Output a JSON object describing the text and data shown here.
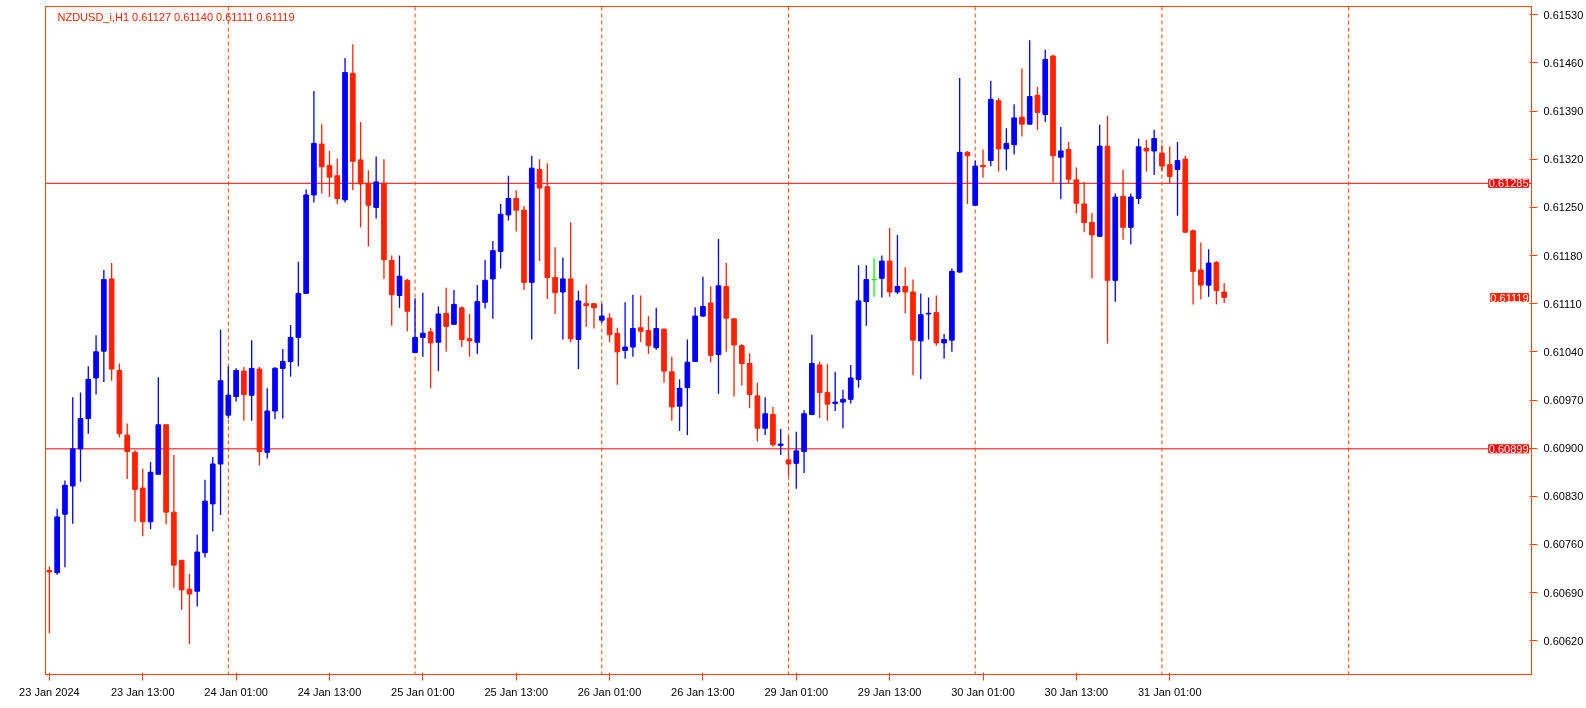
{
  "chart_data": {
    "type": "candlestick",
    "title": "NZDUSD_i,H1  0.61127 0.61140 0.61111 0.61119",
    "categories": [
      "23 Jan 2024",
      null,
      null,
      null,
      null,
      null,
      null,
      null,
      null,
      null,
      null,
      null,
      "23 Jan 13:00",
      null,
      null,
      null,
      null,
      null,
      null,
      null,
      null,
      null,
      null,
      null,
      "24 Jan 01:00",
      null,
      null,
      null,
      null,
      null,
      null,
      null,
      null,
      null,
      null,
      null,
      "24 Jan 13:00",
      null,
      null,
      null,
      null,
      null,
      null,
      null,
      null,
      null,
      null,
      null,
      "25 Jan 01:00",
      null,
      null,
      null,
      null,
      null,
      null,
      null,
      null,
      null,
      null,
      null,
      "25 Jan 13:00",
      null,
      null,
      null,
      null,
      null,
      null,
      null,
      null,
      null,
      null,
      null,
      "26 Jan 01:00",
      null,
      null,
      null,
      null,
      null,
      null,
      null,
      null,
      null,
      null,
      null,
      "26 Jan 13:00",
      null,
      null,
      null,
      null,
      null,
      null,
      null,
      null,
      null,
      null,
      null,
      "29 Jan 01:00",
      null,
      null,
      null,
      null,
      null,
      null,
      null,
      null,
      null,
      null,
      null,
      "29 Jan 13:00",
      null,
      null,
      null,
      null,
      null,
      null,
      null,
      null,
      null,
      null,
      null,
      "30 Jan 01:00",
      null,
      null,
      null,
      null,
      null,
      null,
      null,
      null,
      null,
      null,
      null,
      "30 Jan 13:00",
      null,
      null,
      null,
      null,
      null,
      null,
      null,
      null,
      null,
      null,
      null,
      "31 Jan 01:00",
      null,
      null,
      null,
      null,
      null,
      null,
      null,
      null,
      null,
      null,
      null,
      null,
      null,
      null,
      null,
      null,
      null,
      null,
      null,
      null,
      null,
      null,
      null,
      null,
      null,
      null,
      null,
      null,
      null,
      null,
      null,
      null,
      null,
      null,
      null,
      null,
      null,
      null,
      null,
      null,
      null,
      null,
      null,
      null,
      null,
      null
    ],
    "ohlc": [
      [
        0.60722,
        0.60728,
        0.60631,
        0.6072
      ],
      [
        0.60719,
        0.60812,
        0.60716,
        0.608
      ],
      [
        0.60804,
        0.60853,
        0.60727,
        0.60846
      ],
      [
        0.60845,
        0.60974,
        0.6079,
        0.60899
      ],
      [
        0.60899,
        0.60981,
        0.60851,
        0.60943
      ],
      [
        0.60943,
        0.61019,
        0.60921,
        0.61
      ],
      [
        0.61002,
        0.61064,
        0.60978,
        0.6104
      ],
      [
        0.61041,
        0.61159,
        0.60996,
        0.61145
      ],
      [
        0.61146,
        0.61169,
        0.60998,
        0.61015
      ],
      [
        0.61013,
        0.61023,
        0.60916,
        0.60921
      ],
      [
        0.60919,
        0.60936,
        0.60855,
        0.60895
      ],
      [
        0.60894,
        0.60897,
        0.60793,
        0.6084
      ],
      [
        0.60842,
        0.6087,
        0.60772,
        0.60793
      ],
      [
        0.60793,
        0.6088,
        0.60782,
        0.60865
      ],
      [
        0.60862,
        0.61003,
        0.60862,
        0.60934
      ],
      [
        0.60934,
        0.60934,
        0.60789,
        0.60807
      ],
      [
        0.60807,
        0.6089,
        0.60697,
        0.6073
      ],
      [
        0.60737,
        0.60737,
        0.60665,
        0.60694
      ],
      [
        0.60695,
        0.60717,
        0.60615,
        0.60688
      ],
      [
        0.60692,
        0.60774,
        0.6067,
        0.60749
      ],
      [
        0.60748,
        0.60854,
        0.60741,
        0.60823
      ],
      [
        0.60819,
        0.60887,
        0.60779,
        0.60877
      ],
      [
        0.60877,
        0.61072,
        0.60803,
        0.60998
      ],
      [
        0.60948,
        0.61019,
        0.60943,
        0.60977
      ],
      [
        0.60975,
        0.61016,
        0.60968,
        0.61013
      ],
      [
        0.61012,
        0.61018,
        0.6094,
        0.60978
      ],
      [
        0.60977,
        0.61057,
        0.6094,
        0.61016
      ],
      [
        0.61015,
        0.61018,
        0.60875,
        0.60895
      ],
      [
        0.60894,
        0.60987,
        0.60885,
        0.60954
      ],
      [
        0.60954,
        0.61018,
        0.60942,
        0.61016
      ],
      [
        0.61016,
        0.61044,
        0.60943,
        0.61026
      ],
      [
        0.61026,
        0.61079,
        0.61004,
        0.61061
      ],
      [
        0.61061,
        0.61171,
        0.61019,
        0.61125
      ],
      [
        0.61125,
        0.61276,
        0.61124,
        0.61268
      ],
      [
        0.61268,
        0.61419,
        0.61257,
        0.61343
      ],
      [
        0.61342,
        0.61371,
        0.6127,
        0.61309
      ],
      [
        0.61311,
        0.61332,
        0.61265,
        0.61294
      ],
      [
        0.61296,
        0.61321,
        0.61255,
        0.61263
      ],
      [
        0.61261,
        0.61467,
        0.61257,
        0.61446
      ],
      [
        0.61445,
        0.61487,
        0.61275,
        0.61317
      ],
      [
        0.61319,
        0.61374,
        0.61221,
        0.61284
      ],
      [
        0.61285,
        0.61304,
        0.61193,
        0.61253
      ],
      [
        0.6125,
        0.61324,
        0.61234,
        0.61287
      ],
      [
        0.61285,
        0.6132,
        0.61146,
        0.61174
      ],
      [
        0.61173,
        0.6118,
        0.61078,
        0.61123
      ],
      [
        0.61122,
        0.6118,
        0.61104,
        0.6115
      ],
      [
        0.61144,
        0.61146,
        0.6107,
        0.61099
      ],
      [
        0.61039,
        0.61118,
        0.61039,
        0.61061
      ],
      [
        0.61061,
        0.61126,
        0.61033,
        0.61067
      ],
      [
        0.61069,
        0.61075,
        0.60987,
        0.61053
      ],
      [
        0.61054,
        0.61106,
        0.61012,
        0.61095
      ],
      [
        0.61096,
        0.61133,
        0.6104,
        0.61077
      ],
      [
        0.6108,
        0.6113,
        0.6108,
        0.61109
      ],
      [
        0.61104,
        0.61106,
        0.61047,
        0.61058
      ],
      [
        0.61059,
        0.61095,
        0.61033,
        0.61056
      ],
      [
        0.61054,
        0.61137,
        0.61037,
        0.61113
      ],
      [
        0.61112,
        0.61174,
        0.61103,
        0.61144
      ],
      [
        0.61146,
        0.61201,
        0.61088,
        0.61187
      ],
      [
        0.61186,
        0.61255,
        0.61161,
        0.6124
      ],
      [
        0.61239,
        0.61296,
        0.61231,
        0.61263
      ],
      [
        0.61263,
        0.61275,
        0.61215,
        0.61246
      ],
      [
        0.61246,
        0.61252,
        0.6113,
        0.61141
      ],
      [
        0.61141,
        0.61325,
        0.61058,
        0.61307
      ],
      [
        0.61305,
        0.6132,
        0.61172,
        0.61278
      ],
      [
        0.6128,
        0.61314,
        0.61117,
        0.61148
      ],
      [
        0.61148,
        0.61192,
        0.61095,
        0.61126
      ],
      [
        0.61127,
        0.61177,
        0.61058,
        0.61146
      ],
      [
        0.61146,
        0.61228,
        0.61054,
        0.61059
      ],
      [
        0.61058,
        0.61129,
        0.61015,
        0.61114
      ],
      [
        0.6111,
        0.61138,
        0.61076,
        0.61107
      ],
      [
        0.6111,
        0.6111,
        0.61074,
        0.61104
      ],
      [
        0.61086,
        0.6111,
        0.61082,
        0.61092
      ],
      [
        0.61089,
        0.61096,
        0.61054,
        0.61065
      ],
      [
        0.61067,
        0.61075,
        0.60992,
        0.6104
      ],
      [
        0.61042,
        0.61112,
        0.6103,
        0.61047
      ],
      [
        0.61047,
        0.61123,
        0.61033,
        0.61074
      ],
      [
        0.61075,
        0.61122,
        0.61054,
        0.6107
      ],
      [
        0.61071,
        0.61092,
        0.61037,
        0.61049
      ],
      [
        0.61046,
        0.61104,
        0.61043,
        0.61074
      ],
      [
        0.61073,
        0.61074,
        0.60995,
        0.61012
      ],
      [
        0.61011,
        0.61033,
        0.6094,
        0.6096
      ],
      [
        0.60961,
        0.61,
        0.60925,
        0.60987
      ],
      [
        0.60988,
        0.61058,
        0.60919,
        0.61025
      ],
      [
        0.61026,
        0.61105,
        0.61026,
        0.61092
      ],
      [
        0.61092,
        0.61149,
        0.61091,
        0.61106
      ],
      [
        0.61111,
        0.61135,
        0.61025,
        0.61035
      ],
      [
        0.61036,
        0.61204,
        0.60979,
        0.61136
      ],
      [
        0.61135,
        0.61169,
        0.6104,
        0.61089
      ],
      [
        0.61088,
        0.61088,
        0.60975,
        0.6105
      ],
      [
        0.61049,
        0.61051,
        0.60991,
        0.61023
      ],
      [
        0.61023,
        0.61038,
        0.60958,
        0.60978
      ],
      [
        0.60976,
        0.60995,
        0.6091,
        0.60929
      ],
      [
        0.60929,
        0.60974,
        0.60919,
        0.6095
      ],
      [
        0.60949,
        0.6096,
        0.60902,
        0.60905
      ],
      [
        0.60904,
        0.60928,
        0.6089,
        0.60906
      ],
      [
        0.60883,
        0.60918,
        0.6086,
        0.60877
      ],
      [
        0.60878,
        0.60924,
        0.60841,
        0.60896
      ],
      [
        0.60895,
        0.60955,
        0.60864,
        0.6095
      ],
      [
        0.60949,
        0.61065,
        0.60948,
        0.61023
      ],
      [
        0.61021,
        0.61026,
        0.60944,
        0.60981
      ],
      [
        0.60981,
        0.61022,
        0.6094,
        0.60964
      ],
      [
        0.60965,
        0.61011,
        0.60954,
        0.60967
      ],
      [
        0.60967,
        0.60985,
        0.60929,
        0.60971
      ],
      [
        0.60971,
        0.61021,
        0.60965,
        0.61002
      ],
      [
        0.61,
        0.61166,
        0.60988,
        0.61114
      ],
      [
        0.61113,
        0.61166,
        0.61078,
        0.61145
      ],
      [
        0.61145,
        0.61176,
        0.6112,
        0.61145
      ],
      [
        0.61147,
        0.6118,
        0.61119,
        0.61172
      ],
      [
        0.61172,
        0.6122,
        0.6112,
        0.61127
      ],
      [
        0.61127,
        0.6121,
        0.61124,
        0.61135
      ],
      [
        0.61135,
        0.61163,
        0.61096,
        0.61127
      ],
      [
        0.61127,
        0.61145,
        0.61006,
        0.61057
      ],
      [
        0.61056,
        0.61125,
        0.61,
        0.61094
      ],
      [
        0.61095,
        0.61119,
        0.61058,
        0.61096
      ],
      [
        0.61097,
        0.61122,
        0.61049,
        0.61053
      ],
      [
        0.61053,
        0.61066,
        0.6103,
        0.61058
      ],
      [
        0.61057,
        0.61161,
        0.6104,
        0.61157
      ],
      [
        0.61156,
        0.61438,
        0.61155,
        0.6133
      ],
      [
        0.6133,
        0.61332,
        0.61255,
        0.61325
      ],
      [
        0.61253,
        0.61318,
        0.61253,
        0.6131
      ],
      [
        0.61311,
        0.61334,
        0.61293,
        0.61309
      ],
      [
        0.61318,
        0.61434,
        0.6131,
        0.61407
      ],
      [
        0.61405,
        0.61409,
        0.61302,
        0.61335
      ],
      [
        0.61335,
        0.61365,
        0.61304,
        0.61343
      ],
      [
        0.61341,
        0.614,
        0.61327,
        0.6138
      ],
      [
        0.61381,
        0.61452,
        0.61353,
        0.61371
      ],
      [
        0.61371,
        0.61493,
        0.61371,
        0.61411
      ],
      [
        0.61413,
        0.61425,
        0.61363,
        0.61388
      ],
      [
        0.61385,
        0.61479,
        0.61374,
        0.61465
      ],
      [
        0.6147,
        0.61472,
        0.61286,
        0.61325
      ],
      [
        0.61323,
        0.61367,
        0.61262,
        0.61332
      ],
      [
        0.61334,
        0.61345,
        0.61284,
        0.61291
      ],
      [
        0.6129,
        0.61308,
        0.61241,
        0.61256
      ],
      [
        0.61255,
        0.61287,
        0.61214,
        0.61228
      ],
      [
        0.61228,
        0.61242,
        0.61147,
        0.6121
      ],
      [
        0.61208,
        0.6137,
        0.61208,
        0.61339
      ],
      [
        0.61339,
        0.61383,
        0.61052,
        0.61144
      ],
      [
        0.61144,
        0.6127,
        0.61113,
        0.61265
      ],
      [
        0.61266,
        0.61305,
        0.61203,
        0.61221
      ],
      [
        0.61221,
        0.6127,
        0.61196,
        0.61265
      ],
      [
        0.61263,
        0.6135,
        0.61255,
        0.61338
      ],
      [
        0.61336,
        0.61348,
        0.61302,
        0.61332
      ],
      [
        0.61332,
        0.61363,
        0.61297,
        0.6135
      ],
      [
        0.61329,
        0.61341,
        0.61303,
        0.6131
      ],
      [
        0.61312,
        0.61339,
        0.61284,
        0.61295
      ],
      [
        0.61305,
        0.61345,
        0.61238,
        0.61318
      ],
      [
        0.6132,
        0.61325,
        0.61213,
        0.61214
      ],
      [
        0.61216,
        0.61218,
        0.61109,
        0.61157
      ],
      [
        0.61159,
        0.61199,
        0.61116,
        0.61137
      ],
      [
        0.61137,
        0.61189,
        0.6112,
        0.61169
      ],
      [
        0.6117,
        0.61172,
        0.61109,
        0.61129
      ],
      [
        0.61127,
        0.6114,
        0.61111,
        0.61119
      ],
      null,
      null,
      null,
      null,
      null,
      null,
      null,
      null,
      null,
      null,
      null,
      null,
      null,
      null,
      null,
      null,
      null,
      null,
      null,
      null,
      null,
      null,
      null,
      null,
      null,
      null,
      null,
      null,
      null,
      null,
      null,
      null,
      null,
      null,
      null,
      null,
      null,
      null,
      null
    ],
    "colors": [
      "#ff2200",
      "#0000ff",
      "#0000ff",
      "#0000ff",
      "#0000ff",
      "#0000ff",
      "#0000ff",
      "#0000ff",
      "#ff2200",
      "#ff2200",
      "#ff2200",
      "#ff2200",
      "#ff2200",
      "#0000ff",
      "#0000ff",
      "#ff2200",
      "#ff2200",
      "#ff2200",
      "#ff2200",
      "#0000ff",
      "#0000ff",
      "#0000ff",
      "#0000ff",
      "#0000ff",
      "#0000ff",
      "#ff2200",
      "#0000ff",
      "#ff2200",
      "#0000ff",
      "#0000ff",
      "#0000ff",
      "#0000ff",
      "#0000ff",
      "#0000ff",
      "#0000ff",
      "#ff2200",
      "#ff2200",
      "#ff2200",
      "#0000ff",
      "#ff2200",
      "#ff2200",
      "#ff2200",
      "#0000ff",
      "#ff2200",
      "#ff2200",
      "#0000ff",
      "#ff2200",
      "#0000ff",
      "#0000ff",
      "#ff2200",
      "#0000ff",
      "#ff2200",
      "#0000ff",
      "#ff2200",
      "#ff2200",
      "#0000ff",
      "#0000ff",
      "#0000ff",
      "#0000ff",
      "#0000ff",
      "#ff2200",
      "#ff2200",
      "#0000ff",
      "#ff2200",
      "#ff2200",
      "#ff2200",
      "#0000ff",
      "#ff2200",
      "#0000ff",
      "#ff2200",
      "#ff2200",
      "#0000ff",
      "#ff2200",
      "#ff2200",
      "#0000ff",
      "#0000ff",
      "#ff2200",
      "#ff2200",
      "#0000ff",
      "#ff2200",
      "#ff2200",
      "#0000ff",
      "#0000ff",
      "#0000ff",
      "#0000ff",
      "#ff2200",
      "#0000ff",
      "#ff2200",
      "#ff2200",
      "#ff2200",
      "#ff2200",
      "#ff2200",
      "#0000ff",
      "#ff2200",
      "#0000ff",
      "#ff2200",
      "#0000ff",
      "#0000ff",
      "#0000ff",
      "#ff2200",
      "#ff2200",
      "#0000ff",
      "#0000ff",
      "#0000ff",
      "#0000ff",
      "#0000ff",
      "#00ff00",
      "#0000ff",
      "#ff2200",
      "#0000ff",
      "#ff2200",
      "#ff2200",
      "#0000ff",
      "#0000ff",
      "#ff2200",
      "#0000ff",
      "#0000ff",
      "#0000ff",
      "#ff2200",
      "#0000ff",
      "#ff2200",
      "#0000ff",
      "#ff2200",
      "#0000ff",
      "#0000ff",
      "#ff2200",
      "#0000ff",
      "#ff2200",
      "#0000ff",
      "#ff2200",
      "#0000ff",
      "#ff2200",
      "#ff2200",
      "#ff2200",
      "#ff2200",
      "#0000ff",
      "#ff2200",
      "#0000ff",
      "#ff2200",
      "#0000ff",
      "#0000ff",
      "#ff2200",
      "#0000ff",
      "#ff2200",
      "#ff2200",
      "#0000ff",
      "#ff2200",
      "#ff2200",
      "#ff2200",
      "#0000ff",
      "#ff2200",
      "#ff2200",
      null,
      null,
      null,
      null,
      null,
      null,
      null,
      null,
      null,
      null,
      null,
      null,
      null,
      null,
      null,
      null,
      null,
      null,
      null,
      null,
      null,
      null,
      null,
      null,
      null,
      null,
      null,
      null,
      null,
      null,
      null,
      null,
      null,
      null,
      null,
      null,
      null,
      null,
      null
    ],
    "ylim": [
      0.60571,
      0.61542
    ],
    "yticks": [
      {
        "value": 0.6062,
        "label": "0.60620"
      },
      {
        "value": 0.6069,
        "label": "0.60690"
      },
      {
        "value": 0.6076,
        "label": "0.60760"
      },
      {
        "value": 0.6083,
        "label": "0.60830"
      },
      {
        "value": 0.609,
        "label": "0.60900"
      },
      {
        "value": 0.6097,
        "label": "0.60970"
      },
      {
        "value": 0.6104,
        "label": "0.61040"
      },
      {
        "value": 0.6111,
        "label": "0.61110"
      },
      {
        "value": 0.6118,
        "label": "0.61180"
      },
      {
        "value": 0.6125,
        "label": "0.61250"
      },
      {
        "value": 0.6132,
        "label": "0.61320"
      },
      {
        "value": 0.6139,
        "label": "0.61390"
      },
      {
        "value": 0.6146,
        "label": "0.61460"
      },
      {
        "value": 0.6153,
        "label": "0.61530"
      }
    ],
    "grid": false,
    "ref_lines": [
      {
        "axis": "y",
        "value": 0.61285,
        "label": "0.61285",
        "color": "#ff0000",
        "line_style": "solid"
      },
      {
        "axis": "y",
        "value": 0.60899,
        "label": "0.60899",
        "color": "#ff0000",
        "line_style": "solid"
      }
    ],
    "annotations": [
      "0.61119"
    ]
  }
}
